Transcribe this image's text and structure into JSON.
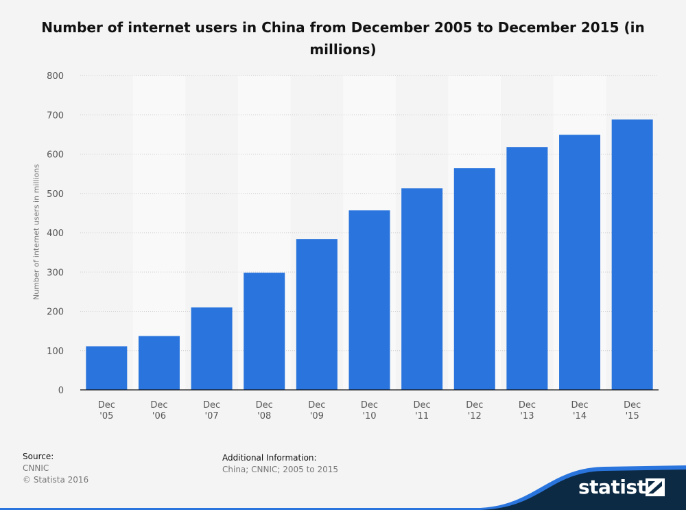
{
  "chart_data": {
    "type": "bar",
    "title": "Number of internet users in China from December 2005 to December 2015 (in millions)",
    "ylabel": "Number of internet users in millions",
    "xlabel": "",
    "categories": [
      [
        "Dec",
        "'05"
      ],
      [
        "Dec",
        "'06"
      ],
      [
        "Dec",
        "'07"
      ],
      [
        "Dec",
        "'08"
      ],
      [
        "Dec",
        "'09"
      ],
      [
        "Dec",
        "'10"
      ],
      [
        "Dec",
        "'11"
      ],
      [
        "Dec",
        "'12"
      ],
      [
        "Dec",
        "'13"
      ],
      [
        "Dec",
        "'14"
      ],
      [
        "Dec",
        "'15"
      ]
    ],
    "values": [
      111,
      137,
      210,
      298,
      384,
      457,
      513,
      564,
      618,
      649,
      688
    ],
    "ylim": [
      0,
      800
    ],
    "yticks": [
      0,
      100,
      200,
      300,
      400,
      500,
      600,
      700,
      800
    ],
    "grid": true,
    "bar_color": "#2a75dd",
    "legend": "none"
  },
  "footer": {
    "source_label": "Source:",
    "source_value": "CNNIC",
    "copyright": "© Statista 2016",
    "additional_label": "Additional Information:",
    "additional_value": "China; CNNIC; 2005 to 2015"
  },
  "brand": {
    "logo_text": "statista",
    "logo_icon": "statista-logo-icon",
    "colors": {
      "dark": "#0d2a44",
      "accent": "#2a75dd"
    }
  }
}
